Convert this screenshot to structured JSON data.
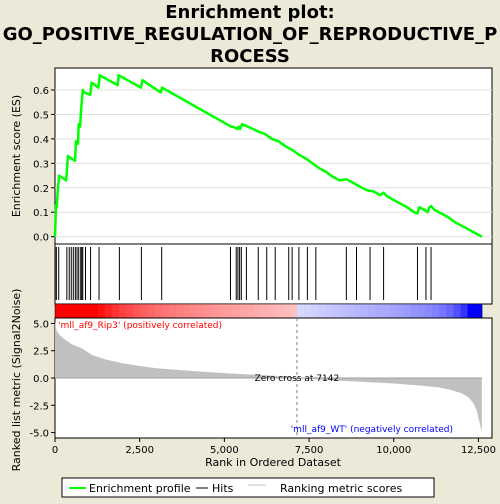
{
  "title_line1": "Enrichment plot:",
  "title_line2": "GO_POSITIVE_REGULATION_OF_REPRODUCTIVE_P",
  "title_line3": "ROCESS",
  "chart_data": {
    "type": "line",
    "es_panel": {
      "ylabel": "Enrichment score (ES)",
      "ylim": [
        -0.03,
        0.69
      ],
      "yticks": [
        "0.0",
        "0.1",
        "0.2",
        "0.3",
        "0.4",
        "0.5",
        "0.6"
      ],
      "ytick_values": [
        0.0,
        0.1,
        0.2,
        0.3,
        0.4,
        0.5,
        0.6
      ],
      "series": [
        {
          "name": "Enrichment profile",
          "color": "#00ff00",
          "x": [
            0,
            30,
            50,
            90,
            120,
            330,
            380,
            590,
            620,
            680,
            700,
            740,
            770,
            820,
            860,
            1040,
            1080,
            1280,
            1320,
            1850,
            1880,
            2540,
            2580,
            3120,
            3160,
            5200,
            5260,
            5380,
            5420,
            5460,
            5520,
            5600,
            5700,
            6000,
            6200,
            6400,
            6600,
            6800,
            7000,
            7200,
            7400,
            7600,
            7800,
            8000,
            8200,
            8400,
            8600,
            8800,
            9000,
            9200,
            9400,
            9600,
            9700,
            9800,
            10000,
            10200,
            10400,
            10600,
            10700,
            10750,
            10900,
            11000,
            11050,
            11100,
            11200,
            11400,
            11600,
            11800,
            12000,
            12200,
            12400,
            12600
          ],
          "y": [
            0.0,
            0.13,
            0.12,
            0.2,
            0.25,
            0.23,
            0.33,
            0.31,
            0.39,
            0.38,
            0.46,
            0.45,
            0.52,
            0.6,
            0.59,
            0.58,
            0.63,
            0.61,
            0.66,
            0.62,
            0.66,
            0.61,
            0.64,
            0.59,
            0.61,
            0.45,
            0.45,
            0.44,
            0.45,
            0.44,
            0.46,
            0.455,
            0.45,
            0.43,
            0.42,
            0.4,
            0.39,
            0.37,
            0.355,
            0.335,
            0.32,
            0.3,
            0.28,
            0.265,
            0.245,
            0.23,
            0.235,
            0.22,
            0.205,
            0.19,
            0.185,
            0.17,
            0.18,
            0.165,
            0.15,
            0.135,
            0.12,
            0.1,
            0.095,
            0.12,
            0.11,
            0.1,
            0.12,
            0.125,
            0.11,
            0.095,
            0.08,
            0.06,
            0.045,
            0.03,
            0.015,
            0.0
          ]
        }
      ]
    },
    "hits": [
      5,
      40,
      110,
      350,
      420,
      480,
      540,
      600,
      650,
      700,
      760,
      790,
      820,
      900,
      1050,
      1300,
      1900,
      2550,
      3150,
      5180,
      5350,
      5400,
      5450,
      5500,
      5650,
      6000,
      6250,
      6500,
      6900,
      7000,
      7200,
      7450,
      7700,
      8600,
      8900,
      9300,
      9700,
      10700,
      10950,
      11100
    ],
    "metric_panel": {
      "ylabel": "Ranked list metric (Signal2Noise)",
      "ylim": [
        -5.5,
        5.5
      ],
      "yticks": [
        "5.0",
        "2.5",
        "0.0",
        "-2.5",
        "-5.0"
      ],
      "ytick_values": [
        5.0,
        2.5,
        0.0,
        -2.5,
        -5.0
      ],
      "x": [
        0,
        50,
        150,
        300,
        500,
        800,
        1100,
        1500,
        2000,
        2500,
        3000,
        4000,
        5000,
        6000,
        7000,
        7142,
        7500,
        8000,
        9000,
        10000,
        10800,
        11300,
        11700,
        12000,
        12200,
        12350,
        12450,
        12550,
        12600
      ],
      "values": [
        5.2,
        4.3,
        3.9,
        3.5,
        3.1,
        2.7,
        2.1,
        1.7,
        1.35,
        1.1,
        0.9,
        0.65,
        0.45,
        0.28,
        0.1,
        0.0,
        -0.08,
        -0.18,
        -0.35,
        -0.5,
        -0.7,
        -0.85,
        -1.1,
        -1.4,
        -1.75,
        -2.3,
        -3.0,
        -4.3,
        -5.0
      ],
      "zero_cross": 7142,
      "zero_cross_label": "Zero cross at 7142",
      "pos_label": "'mll_af9_Rip3' (positively correlated)",
      "neg_label": "'mll_af9_WT' (negatively correlated)"
    },
    "xlabel": "Rank in Ordered Dataset",
    "xlim": [
      0,
      12900
    ],
    "xticks": [
      "0",
      "2,500",
      "5,000",
      "7,500",
      "10,000",
      "12,500"
    ],
    "xtick_values": [
      0,
      2500,
      5000,
      7500,
      10000,
      12500
    ],
    "legend": [
      "Enrichment profile",
      "Hits",
      "Ranking metric scores"
    ],
    "legend_placement": "bottom",
    "colors": {
      "es": "#00ff00",
      "hits": "#000000",
      "metric": "#c0c0c0",
      "pos": "#ff0000",
      "neg": "#0000ff"
    }
  }
}
